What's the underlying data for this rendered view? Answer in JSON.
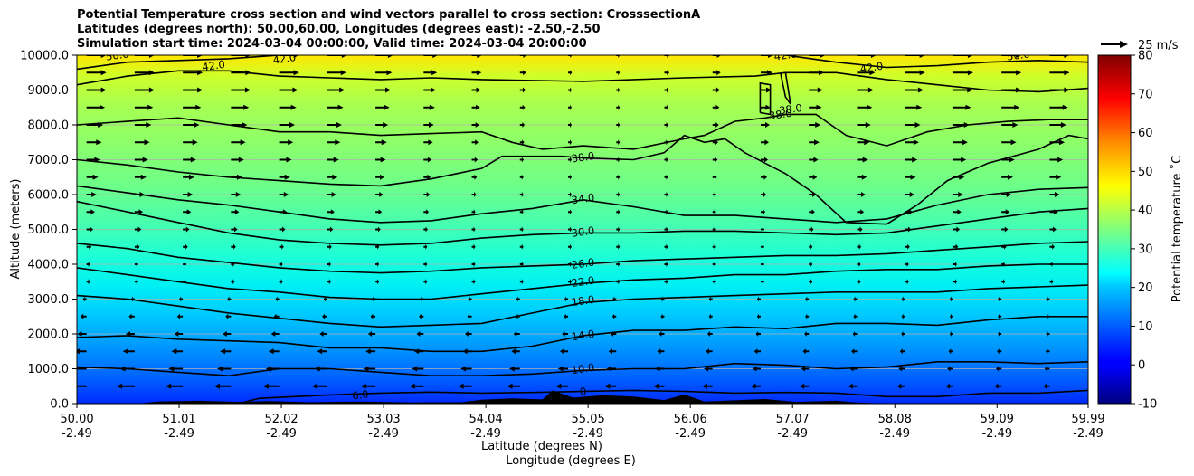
{
  "chart_data": {
    "type": "contour",
    "title_lines": [
      "Potential Temperature cross section and wind vectors parallel to cross section: CrosssectionA",
      "Latitudes (degrees north): 50.00,60.00, Longitudes (degrees east): -2.50,-2.50",
      "Simulation start time: 2024-03-04 00:00:00, Valid time: 2024-03-04 20:00:00"
    ],
    "ylabel": "Altitude (meters)",
    "xlabel_lat": "Latitude (degrees N)",
    "xlabel_lon": "Longitude (degrees E)",
    "ylim": [
      0,
      10000
    ],
    "yticks": [
      "0.0",
      "1000.0",
      "2000.0",
      "3000.0",
      "4000.0",
      "5000.0",
      "6000.0",
      "7000.0",
      "8000.0",
      "9000.0",
      "10000.0"
    ],
    "xlim": [
      50.0,
      59.99
    ],
    "xticks": [
      {
        "lat": "50.00",
        "lon": "-2.49"
      },
      {
        "lat": "51.01",
        "lon": "-2.49"
      },
      {
        "lat": "52.02",
        "lon": "-2.49"
      },
      {
        "lat": "53.03",
        "lon": "-2.49"
      },
      {
        "lat": "54.04",
        "lon": "-2.49"
      },
      {
        "lat": "55.05",
        "lon": "-2.49"
      },
      {
        "lat": "56.06",
        "lon": "-2.49"
      },
      {
        "lat": "57.07",
        "lon": "-2.49"
      },
      {
        "lat": "58.08",
        "lon": "-2.49"
      },
      {
        "lat": "59.09",
        "lon": "-2.49"
      },
      {
        "lat": "59.99",
        "lon": "-2.49"
      }
    ],
    "grid": "horizontal",
    "colorbar": {
      "label": "Potential temperature $^\\circ$C",
      "range": [
        -10,
        80
      ],
      "ticks": [
        "-10",
        "0",
        "10",
        "20",
        "30",
        "40",
        "50",
        "60",
        "70",
        "80"
      ],
      "colormap": "jet"
    },
    "quiver_key": "25 m/s",
    "contours": [
      {
        "label": "0",
        "lat": 55.0,
        "alt": 350
      },
      {
        "label": "6.0",
        "lat": 52.8,
        "alt": 250
      },
      {
        "label": "10.0",
        "lat": 55.0,
        "alt": 1000
      },
      {
        "label": "14.0",
        "lat": 55.0,
        "alt": 1960
      },
      {
        "label": "18.0",
        "lat": 55.0,
        "alt": 2950
      },
      {
        "label": "22.0",
        "lat": 55.0,
        "alt": 3500
      },
      {
        "label": "26.0",
        "lat": 55.0,
        "alt": 4020
      },
      {
        "label": "30.0",
        "lat": 55.0,
        "alt": 4930
      },
      {
        "label": "34.0",
        "lat": 55.0,
        "alt": 5880
      },
      {
        "label": "38.0",
        "lat": 55.0,
        "alt": 7070
      },
      {
        "label": "38.0",
        "lat": 57.05,
        "alt": 8450
      },
      {
        "label": "38.0",
        "lat": 56.95,
        "alt": 8300
      },
      {
        "label": "42.0",
        "lat": 51.35,
        "alt": 9700
      },
      {
        "label": "42.0",
        "lat": 52.05,
        "alt": 9900
      },
      {
        "label": "42.0",
        "lat": 57.0,
        "alt": 10000
      },
      {
        "label": "42.0",
        "lat": 57.85,
        "alt": 9650
      },
      {
        "label": "50.0",
        "lat": 50.4,
        "alt": 10000
      },
      {
        "label": "50.0",
        "lat": 59.3,
        "alt": 10000
      }
    ]
  }
}
